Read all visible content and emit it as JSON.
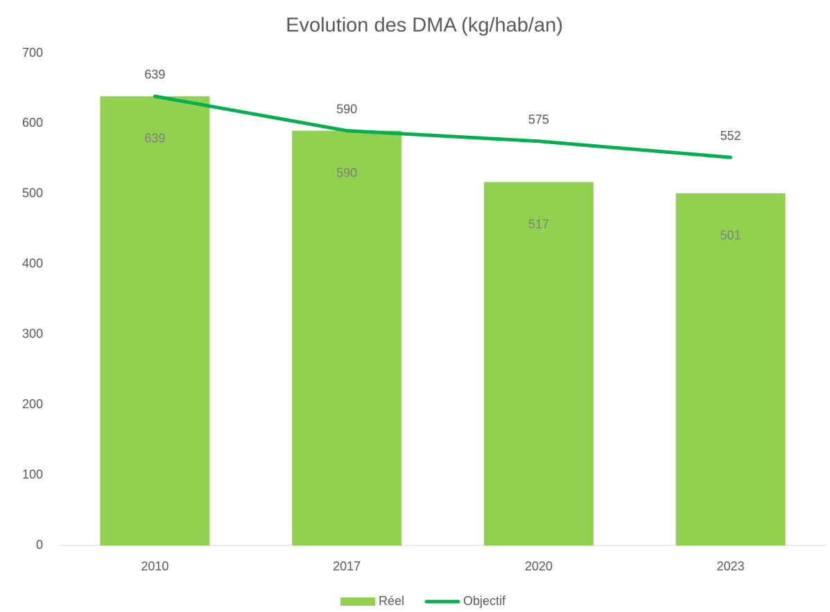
{
  "chart_data": {
    "type": "bar",
    "title": "Evolution des DMA (kg/hab/an)",
    "categories": [
      "2010",
      "2017",
      "2020",
      "2023"
    ],
    "series": [
      {
        "name": "Réel",
        "type": "bar",
        "color": "#92d050",
        "values": [
          639,
          590,
          517,
          501
        ]
      },
      {
        "name": "Objectif",
        "type": "line",
        "color": "#00b050",
        "values": [
          639,
          590,
          575,
          552
        ]
      }
    ],
    "ylim": [
      0,
      700
    ],
    "yticks": [
      0,
      100,
      200,
      300,
      400,
      500,
      600,
      700
    ],
    "grid": false,
    "legend": "bottom"
  }
}
